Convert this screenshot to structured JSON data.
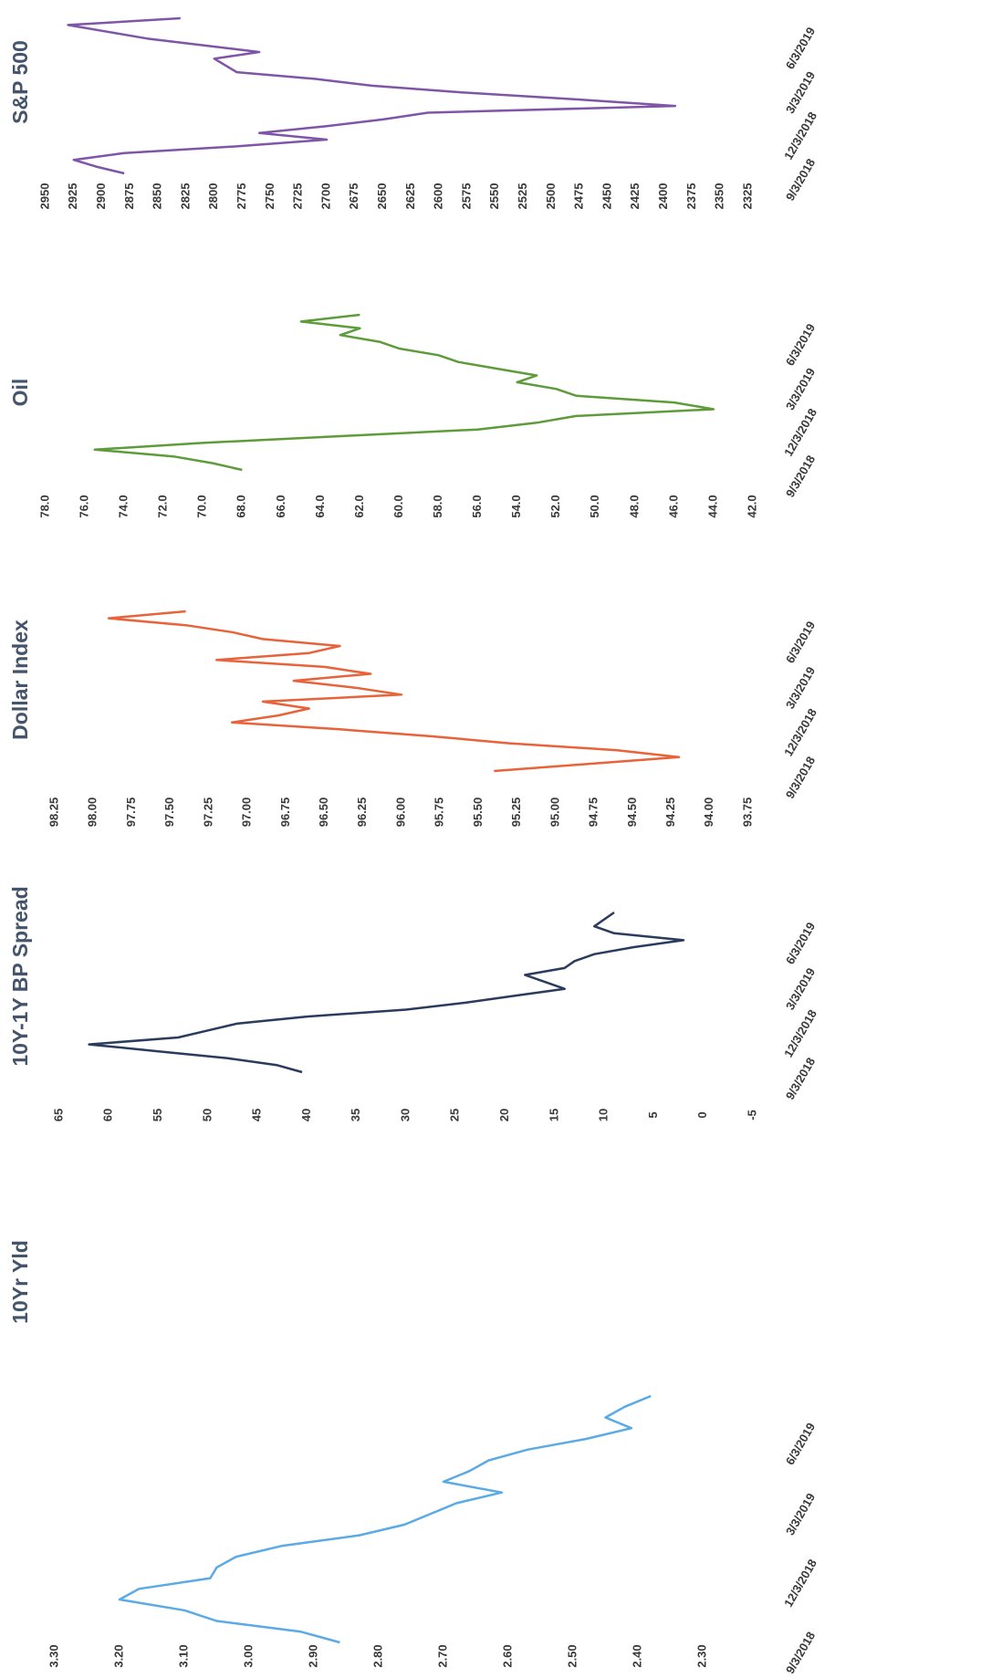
{
  "chart_data": [
    {
      "type": "line",
      "title": "10Yr Yld",
      "color": "#5aaae6",
      "x": [
        "9/17/2018",
        "10/1/2018",
        "10/15/2018",
        "10/29/2018",
        "11/12/2018",
        "11/26/2018",
        "12/10/2018",
        "12/24/2018",
        "1/7/2019",
        "1/21/2019",
        "2/4/2019",
        "2/18/2019",
        "3/4/2019",
        "3/18/2019",
        "4/1/2019",
        "4/15/2019",
        "4/29/2019",
        "5/13/2019",
        "5/27/2019",
        "6/10/2019",
        "6/24/2019",
        "7/8/2019",
        "7/22/2019",
        "8/5/2019"
      ],
      "values": [
        2.86,
        2.92,
        3.05,
        3.1,
        3.2,
        3.17,
        3.06,
        3.05,
        3.02,
        2.95,
        2.83,
        2.76,
        2.72,
        2.68,
        2.61,
        2.7,
        2.66,
        2.63,
        2.57,
        2.48,
        2.41,
        2.45,
        2.42,
        2.38
      ],
      "ylim": [
        2.3,
        3.3
      ],
      "yticks": [
        {
          "value": 2.3,
          "label": "2.30"
        },
        {
          "value": 2.4,
          "label": "2.40"
        },
        {
          "value": 2.5,
          "label": "2.50"
        },
        {
          "value": 2.6,
          "label": "2.60"
        },
        {
          "value": 2.7,
          "label": "2.70"
        },
        {
          "value": 2.8,
          "label": "2.80"
        },
        {
          "value": 2.9,
          "label": "2.90"
        },
        {
          "value": 3.0,
          "label": "3.00"
        },
        {
          "value": 3.1,
          "label": "3.10"
        },
        {
          "value": 3.2,
          "label": "3.20"
        },
        {
          "value": 3.3,
          "label": "3.30"
        }
      ],
      "xticks": [
        "9/3/2018",
        "12/3/2018",
        "3/3/2019",
        "6/3/2019"
      ]
    },
    {
      "type": "line",
      "title": "10Y-1Y BP Spread",
      "color": "#2b3b5e",
      "x": [
        "9/17/2018",
        "10/1/2018",
        "10/15/2018",
        "10/29/2018",
        "11/12/2018",
        "11/26/2018",
        "12/10/2018",
        "12/24/2018",
        "1/7/2019",
        "1/21/2019",
        "2/4/2019",
        "2/18/2019",
        "3/4/2019",
        "3/18/2019",
        "4/1/2019",
        "4/15/2019",
        "4/29/2019",
        "5/13/2019",
        "5/27/2019",
        "6/10/2019",
        "6/24/2019",
        "7/8/2019",
        "7/22/2019",
        "8/5/2019"
      ],
      "values": [
        40.5,
        43,
        48,
        55,
        62,
        53,
        50,
        47,
        40,
        30,
        24,
        19,
        14,
        16,
        18,
        14,
        13,
        11,
        7,
        2,
        9,
        11,
        10,
        9
      ],
      "ylim": [
        -5,
        65
      ],
      "yticks": [
        -5,
        0,
        5,
        10,
        15,
        20,
        25,
        30,
        35,
        40,
        45,
        50,
        55,
        60,
        65
      ],
      "xticks": [
        "9/3/2018",
        "12/3/2018",
        "3/3/2019",
        "6/3/2019"
      ]
    },
    {
      "type": "line",
      "title": "Dollar Index",
      "color": "#e8623a",
      "x": [
        "9/17/2018",
        "10/1/2018",
        "10/15/2018",
        "10/29/2018",
        "11/12/2018",
        "11/26/2018",
        "12/10/2018",
        "12/24/2018",
        "1/7/2019",
        "1/21/2019",
        "2/4/2019",
        "2/18/2019",
        "3/4/2019",
        "3/18/2019",
        "4/1/2019",
        "4/15/2019",
        "4/29/2019",
        "5/13/2019",
        "5/27/2019",
        "6/10/2019",
        "6/24/2019",
        "7/8/2019",
        "7/22/2019",
        "8/5/2019"
      ],
      "values": [
        95.4,
        94.8,
        94.2,
        94.6,
        95.3,
        95.8,
        96.4,
        97.1,
        96.8,
        96.6,
        96.9,
        96.0,
        96.3,
        96.7,
        96.2,
        96.5,
        97.2,
        96.6,
        96.4,
        96.9,
        97.1,
        97.4,
        97.9,
        97.4
      ],
      "ylim": [
        93.75,
        98.25
      ],
      "yticks": [
        93.75,
        {
          "value": 94,
          "label": "94.00"
        },
        94.25,
        {
          "value": 94.5,
          "label": "94.50"
        },
        94.75,
        {
          "value": 95,
          "label": "95.00"
        },
        95.25,
        {
          "value": 95.5,
          "label": "95.50"
        },
        95.75,
        {
          "value": 96,
          "label": "96.00"
        },
        96.25,
        {
          "value": 96.5,
          "label": "96.50"
        },
        96.75,
        {
          "value": 97,
          "label": "97.00"
        },
        97.25,
        {
          "value": 97.5,
          "label": "97.50"
        },
        97.75,
        {
          "value": 98,
          "label": "98.00"
        },
        98.25
      ],
      "xticks": [
        "9/3/2018",
        "12/3/2018",
        "3/3/2019",
        "6/3/2019"
      ]
    },
    {
      "type": "line",
      "title": "Oil",
      "color": "#5e9b3a",
      "x": [
        "9/17/2018",
        "10/1/2018",
        "10/15/2018",
        "10/29/2018",
        "11/12/2018",
        "11/26/2018",
        "12/10/2018",
        "12/24/2018",
        "1/7/2019",
        "1/21/2019",
        "2/4/2019",
        "2/18/2019",
        "3/4/2019",
        "3/18/2019",
        "4/1/2019",
        "4/15/2019",
        "4/29/2019",
        "5/13/2019",
        "5/27/2019",
        "6/10/2019",
        "6/24/2019",
        "7/8/2019",
        "7/22/2019",
        "8/5/2019"
      ],
      "values": [
        68.0,
        69.5,
        71.5,
        75.5,
        70,
        63,
        56,
        53,
        51,
        44,
        46,
        51,
        52,
        54,
        53,
        55,
        57,
        58,
        60,
        61,
        63,
        62,
        65,
        62
      ],
      "ylim": [
        42,
        78
      ],
      "yticks": [
        {
          "value": 42,
          "label": "42.0"
        },
        {
          "value": 44,
          "label": "44.0"
        },
        {
          "value": 46,
          "label": "46.0"
        },
        {
          "value": 48,
          "label": "48.0"
        },
        {
          "value": 50,
          "label": "50.0"
        },
        {
          "value": 52,
          "label": "52.0"
        },
        {
          "value": 54,
          "label": "54.0"
        },
        {
          "value": 56,
          "label": "56.0"
        },
        {
          "value": 58,
          "label": "58.0"
        },
        {
          "value": 60,
          "label": "60.0"
        },
        {
          "value": 62,
          "label": "62.0"
        },
        {
          "value": 64,
          "label": "64.0"
        },
        {
          "value": 66,
          "label": "66.0"
        },
        {
          "value": 68,
          "label": "68.0"
        },
        {
          "value": 70,
          "label": "70.0"
        },
        {
          "value": 72,
          "label": "72.0"
        },
        {
          "value": 74,
          "label": "74.0"
        },
        {
          "value": 76,
          "label": "76.0"
        },
        {
          "value": 78,
          "label": "78.0"
        }
      ],
      "xticks": [
        "9/3/2018",
        "12/3/2018",
        "3/3/2019",
        "6/3/2019"
      ]
    },
    {
      "type": "line",
      "title": "S&P 500",
      "color": "#7f55a8",
      "x": [
        "9/17/2018",
        "10/1/2018",
        "10/15/2018",
        "10/29/2018",
        "11/12/2018",
        "11/26/2018",
        "12/10/2018",
        "12/24/2018",
        "1/7/2019",
        "1/21/2019",
        "2/4/2019",
        "2/18/2019",
        "3/4/2019",
        "3/18/2019",
        "4/1/2019",
        "4/15/2019",
        "4/29/2019",
        "5/13/2019",
        "5/27/2019",
        "6/10/2019",
        "6/24/2019",
        "7/8/2019",
        "7/22/2019",
        "8/5/2019"
      ],
      "values": [
        2880,
        2905,
        2925,
        2880,
        2780,
        2700,
        2760,
        2700,
        2650,
        2610,
        2390,
        2480,
        2580,
        2660,
        2710,
        2780,
        2790,
        2800,
        2760,
        2810,
        2860,
        2895,
        2930,
        2830
      ],
      "ylim": [
        2325,
        2950
      ],
      "yticks": [
        2325,
        2350,
        2375,
        2400,
        2425,
        2450,
        2475,
        2500,
        2525,
        2550,
        2575,
        2600,
        2625,
        2650,
        2675,
        2700,
        2725,
        2750,
        2775,
        2800,
        2825,
        2850,
        2875,
        2900,
        2925,
        2950
      ],
      "xticks": [
        "9/3/2018",
        "12/3/2018",
        "3/3/2019",
        "6/3/2019"
      ]
    }
  ]
}
